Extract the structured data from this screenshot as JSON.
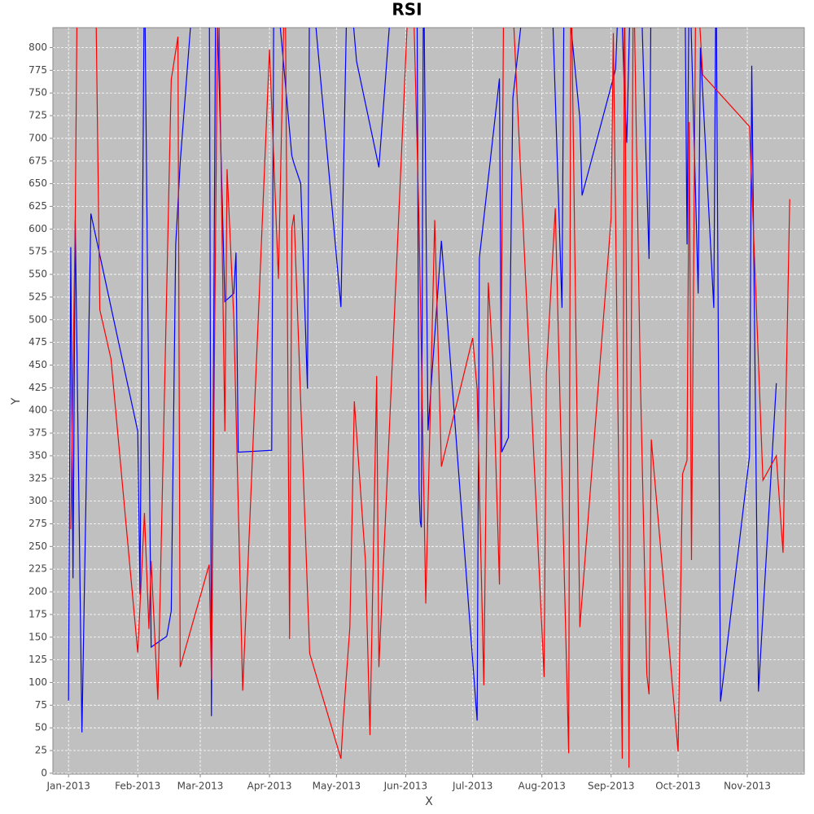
{
  "chart_data": {
    "type": "line",
    "title": "RSI",
    "x_label": "X",
    "y_label": "Y",
    "xlim": [
      -7,
      329.5
    ],
    "ylim": [
      -1,
      822
    ],
    "xticks": [
      {
        "value": 0,
        "label": "Jan-2013"
      },
      {
        "value": 31,
        "label": "Feb-2013"
      },
      {
        "value": 59,
        "label": "Mar-2013"
      },
      {
        "value": 90,
        "label": "Apr-2013"
      },
      {
        "value": 120,
        "label": "May-2013"
      },
      {
        "value": 151,
        "label": "Jun-2013"
      },
      {
        "value": 181,
        "label": "Jul-2013"
      },
      {
        "value": 212,
        "label": "Aug-2013"
      },
      {
        "value": 243,
        "label": "Sep-2013"
      },
      {
        "value": 273,
        "label": "Oct-2013"
      },
      {
        "value": 304,
        "label": "Nov-2013"
      }
    ],
    "yticks": [
      0,
      25,
      50,
      75,
      100,
      125,
      150,
      175,
      200,
      225,
      250,
      275,
      300,
      325,
      350,
      375,
      400,
      425,
      450,
      475,
      500,
      525,
      550,
      575,
      600,
      625,
      650,
      675,
      700,
      725,
      750,
      775,
      800
    ],
    "grid": true,
    "series": [
      {
        "color": "#0000ff",
        "x": [
          0,
          1,
          2,
          3,
          6,
          10,
          31,
          32,
          34,
          37,
          44,
          46,
          48,
          50,
          57,
          63,
          64,
          66,
          70,
          74,
          75,
          76,
          91,
          92,
          100,
          101,
          104,
          107,
          108,
          122,
          125,
          129,
          139,
          146,
          156,
          157,
          157.5,
          158,
          159,
          161,
          167,
          183,
          184,
          193,
          194,
          197,
          199,
          206,
          216,
          221,
          222,
          229,
          230,
          245,
          247,
          249,
          250,
          252,
          256,
          260,
          261,
          276,
          277,
          278,
          282,
          283,
          289,
          290,
          292,
          305,
          306,
          309,
          317
        ],
        "values": [
          80,
          580,
          215,
          610,
          45,
          617,
          377,
          197,
          900,
          139,
          151,
          179,
          583,
          673,
          900,
          900,
          63,
          900,
          520,
          529,
          574,
          354,
          356,
          900,
          681,
          672,
          650,
          424,
          900,
          514,
          900,
          785,
          668,
          900,
          900,
          312,
          278,
          271,
          900,
          378,
          587,
          58,
          568,
          766,
          354,
          370,
          744,
          900,
          900,
          513,
          900,
          722,
          637,
          776,
          900,
          749,
          695,
          900,
          900,
          567,
          900,
          900,
          583,
          900,
          529,
          800,
          513,
          900,
          79,
          350,
          780,
          90,
          430
        ]
      },
      {
        "color": "#ff0000",
        "x": [
          1,
          3,
          4,
          12,
          14,
          19,
          31,
          34,
          36,
          37,
          40,
          46,
          49,
          50,
          63,
          64,
          67,
          70,
          71,
          74,
          78,
          90,
          94,
          97,
          99,
          100,
          101,
          108,
          122,
          123,
          126,
          128,
          133,
          135,
          138,
          139,
          153,
          154,
          157,
          160,
          164,
          167,
          181,
          183,
          186,
          188,
          190,
          193,
          195,
          198,
          213,
          214,
          218,
          224,
          225,
          229,
          243,
          244,
          248,
          249,
          251,
          253,
          256,
          259,
          260,
          261,
          273,
          275,
          277,
          278,
          279,
          281,
          284,
          305,
          311,
          317,
          320,
          323
        ],
        "values": [
          269,
          610,
          900,
          900,
          511,
          457,
          133,
          287,
          159,
          234,
          81,
          765,
          812,
          117,
          230,
          103,
          900,
          377,
          666,
          502,
          91,
          798,
          545,
          900,
          148,
          601,
          616,
          132,
          16,
          58,
          161,
          410,
          233,
          42,
          438,
          117,
          900,
          900,
          605,
          187,
          610,
          338,
          480,
          423,
          97,
          541,
          457,
          208,
          900,
          900,
          106,
          440,
          623,
          22,
          900,
          161,
          612,
          816,
          16,
          900,
          6,
          900,
          448,
          109,
          87,
          368,
          24,
          330,
          345,
          718,
          235,
          900,
          770,
          713,
          323,
          350,
          243,
          633
        ]
      }
    ]
  }
}
